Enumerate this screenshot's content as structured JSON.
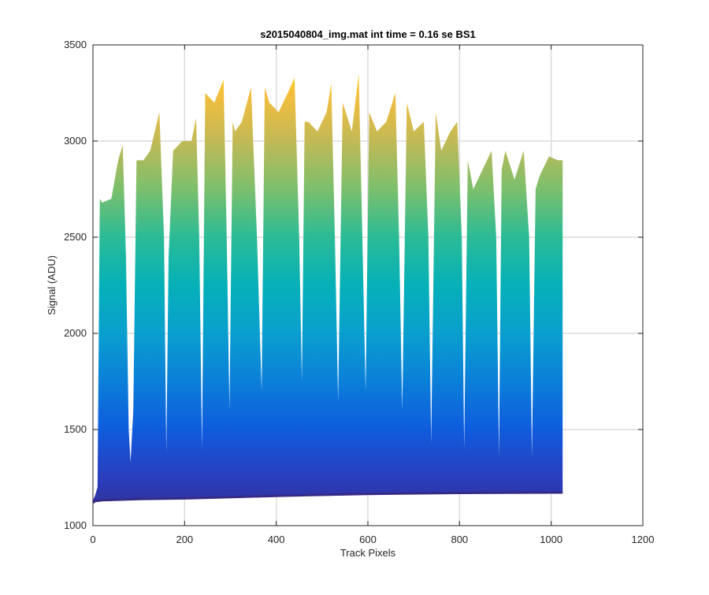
{
  "figure": {
    "title": "s2015040804_img.mat int time = 0.16 se   BS1"
  },
  "chart_data": {
    "type": "area",
    "title": "s2015040804_img.mat int time = 0.16 se   BS1",
    "xlabel": "Track Pixels",
    "ylabel": "Signal (ADU)",
    "xlim": [
      0,
      1200
    ],
    "ylim": [
      1000,
      3500
    ],
    "xticks": [
      0,
      200,
      400,
      600,
      800,
      1000,
      1200
    ],
    "yticks": [
      1000,
      1500,
      2000,
      2500,
      3000,
      3500
    ],
    "xtick_labels": [
      "0",
      "200",
      "400",
      "600",
      "800",
      "1000",
      "1200"
    ],
    "ytick_labels": [
      "1000",
      "1500",
      "2000",
      "2500",
      "3000",
      "3500"
    ],
    "grid": true,
    "colormap": "parula (value-mapped fill)",
    "series": [
      {
        "x": [
          0,
          5,
          10,
          15,
          20,
          40,
          55,
          65,
          72,
          78,
          82,
          88,
          95,
          110,
          125,
          145,
          155,
          160,
          165,
          175,
          195,
          215,
          225,
          232,
          238,
          245,
          265,
          285,
          292,
          298,
          305,
          310,
          325,
          345,
          358,
          368,
          375,
          385,
          405,
          425,
          440,
          450,
          456,
          462,
          470,
          490,
          510,
          520,
          528,
          535,
          545,
          565,
          580,
          588,
          595,
          603,
          620,
          640,
          660,
          668,
          675,
          685,
          700,
          722,
          732,
          738,
          748,
          760,
          780,
          795,
          805,
          810,
          818,
          830,
          850,
          870,
          880,
          886,
          892,
          900,
          920,
          940,
          952,
          958,
          966,
          975,
          995,
          1015,
          1025
        ],
        "y": [
          1130,
          1160,
          1200,
          2700,
          2680,
          2700,
          2900,
          2980,
          2400,
          1500,
          1330,
          1600,
          2900,
          2900,
          2950,
          3150,
          2500,
          1380,
          2400,
          2950,
          3000,
          3000,
          3120,
          2500,
          1400,
          3250,
          3200,
          3320,
          2500,
          1600,
          3100,
          3050,
          3100,
          3280,
          2500,
          1700,
          3280,
          3200,
          3150,
          3250,
          3330,
          2500,
          1750,
          3100,
          3100,
          3050,
          3150,
          3300,
          2500,
          1650,
          3200,
          3050,
          3350,
          2500,
          1700,
          3150,
          3050,
          3100,
          3250,
          2500,
          1600,
          3200,
          3050,
          3100,
          2500,
          1430,
          3150,
          2950,
          3050,
          3100,
          2500,
          1400,
          2900,
          2750,
          2850,
          2950,
          2500,
          1360,
          2850,
          2950,
          2800,
          2950,
          2500,
          1360,
          2750,
          2820,
          2920,
          2900,
          2900
        ]
      }
    ],
    "baseline": {
      "x": [
        0,
        5,
        20,
        100,
        200,
        400,
        600,
        800,
        1000,
        1025
      ],
      "y": [
        1120,
        1128,
        1132,
        1138,
        1142,
        1155,
        1165,
        1170,
        1172,
        1172
      ]
    }
  }
}
